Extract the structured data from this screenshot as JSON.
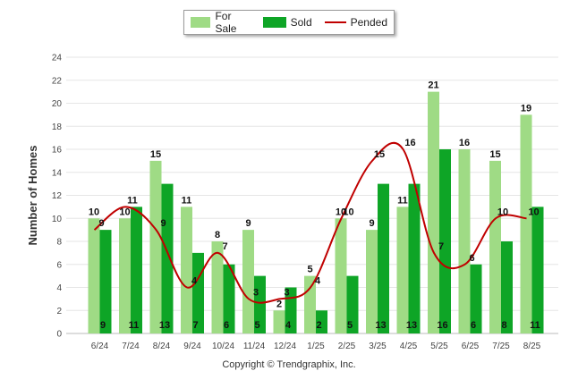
{
  "legend": {
    "for_sale": "For Sale",
    "sold": "Sold",
    "pended": "Pended"
  },
  "credit": "Copyright © Trendgraphix, Inc.",
  "colors": {
    "for_sale": "#9fdb85",
    "sold": "#0ea526",
    "pended": "#c00000",
    "grid": "#e6e6e6",
    "axis_text": "#444444"
  },
  "chart_data": {
    "type": "bar",
    "title": "",
    "xlabel": "",
    "ylabel": "Number of Homes",
    "ylim": [
      0,
      24
    ],
    "yticks": [
      0,
      2,
      4,
      6,
      8,
      10,
      12,
      14,
      16,
      18,
      20,
      22,
      24
    ],
    "grid": true,
    "legend_position": "top-center",
    "categories": [
      "6/24",
      "7/24",
      "8/24",
      "9/24",
      "10/24",
      "11/24",
      "12/24",
      "1/25",
      "2/25",
      "3/25",
      "4/25",
      "5/25",
      "6/25",
      "7/25",
      "8/25"
    ],
    "series": [
      {
        "name": "For Sale",
        "type": "bar",
        "values": [
          10,
          10,
          15,
          11,
          8,
          9,
          2,
          5,
          10,
          9,
          11,
          21,
          16,
          15,
          19
        ]
      },
      {
        "name": "Sold",
        "type": "bar",
        "values": [
          9,
          11,
          13,
          7,
          6,
          5,
          4,
          2,
          5,
          13,
          13,
          16,
          6,
          8,
          11
        ]
      },
      {
        "name": "Pended",
        "type": "line",
        "values": [
          9,
          11,
          9,
          4,
          7,
          3,
          3,
          4,
          10,
          15,
          16,
          7,
          6,
          10,
          10
        ]
      }
    ]
  }
}
